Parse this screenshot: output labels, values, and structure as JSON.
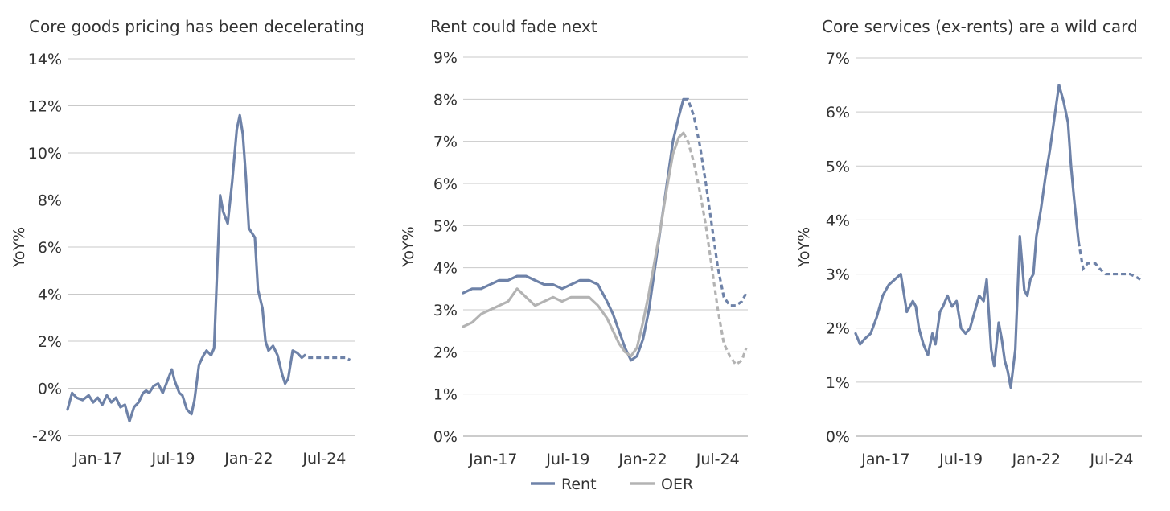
{
  "colors": {
    "rent": "#6e82a8",
    "oer": "#b3b3b3",
    "grid": "#c9c9c9",
    "text": "#333333"
  },
  "chart_data": [
    {
      "type": "line",
      "title": "Core goods pricing has been decelerating",
      "ylabel": "YoY%",
      "xlabel": "",
      "ylim": [
        -2,
        14
      ],
      "yticks": [
        -2,
        0,
        2,
        4,
        6,
        8,
        10,
        12,
        14
      ],
      "ytick_labels": [
        "-2%",
        "0%",
        "2%",
        "4%",
        "6%",
        "8%",
        "10%",
        "12%",
        "14%"
      ],
      "xlim": [
        2016.0,
        2025.5
      ],
      "xticks": [
        2017.0,
        2019.5,
        2022.0,
        2024.5
      ],
      "xtick_labels": [
        "Jan-17",
        "Jul-19",
        "Jan-22",
        "Jul-24"
      ],
      "series": [
        {
          "name": "Core goods",
          "color": "#6e82a8",
          "projected_from": 2023.7,
          "x": [
            2016.0,
            2016.15,
            2016.3,
            2016.5,
            2016.7,
            2016.85,
            2017.0,
            2017.15,
            2017.3,
            2017.45,
            2017.6,
            2017.75,
            2017.9,
            2018.05,
            2018.2,
            2018.35,
            2018.5,
            2018.6,
            2018.7,
            2018.85,
            2019.0,
            2019.15,
            2019.3,
            2019.45,
            2019.55,
            2019.7,
            2019.8,
            2019.95,
            2020.1,
            2020.2,
            2020.35,
            2020.5,
            2020.6,
            2020.75,
            2020.85,
            2020.95,
            2021.05,
            2021.15,
            2021.3,
            2021.45,
            2021.6,
            2021.7,
            2021.8,
            2021.9,
            2022.0,
            2022.1,
            2022.2,
            2022.3,
            2022.45,
            2022.55,
            2022.65,
            2022.8,
            2022.95,
            2023.1,
            2023.2,
            2023.3,
            2023.45,
            2023.6,
            2023.75,
            2023.85,
            2023.95,
            2024.05,
            2024.2,
            2024.3,
            2024.45,
            2024.6,
            2024.8,
            2025.0,
            2025.2,
            2025.35
          ],
          "y": [
            -0.9,
            -0.2,
            -0.4,
            -0.5,
            -0.3,
            -0.6,
            -0.4,
            -0.7,
            -0.3,
            -0.6,
            -0.4,
            -0.8,
            -0.7,
            -1.4,
            -0.8,
            -0.6,
            -0.2,
            -0.1,
            -0.2,
            0.1,
            0.2,
            -0.2,
            0.3,
            0.8,
            0.3,
            -0.2,
            -0.3,
            -0.9,
            -1.1,
            -0.5,
            1.0,
            1.4,
            1.6,
            1.4,
            1.7,
            5.0,
            8.2,
            7.5,
            7.0,
            8.8,
            11.0,
            11.6,
            10.8,
            9.0,
            6.8,
            6.6,
            6.4,
            4.2,
            3.4,
            2.0,
            1.6,
            1.8,
            1.4,
            0.6,
            0.2,
            0.4,
            1.6,
            1.5,
            1.3,
            1.4,
            1.3,
            1.3,
            1.3,
            1.3,
            1.3,
            1.3,
            1.3,
            1.3,
            1.3,
            1.2
          ]
        }
      ]
    },
    {
      "type": "line",
      "title": "Rent could fade next",
      "ylabel": "YoY%",
      "xlabel": "",
      "ylim": [
        0,
        9
      ],
      "yticks": [
        0,
        1,
        2,
        3,
        4,
        5,
        6,
        7,
        8,
        9
      ],
      "ytick_labels": [
        "0%",
        "1%",
        "2%",
        "3%",
        "4%",
        "5%",
        "6%",
        "7%",
        "8%",
        "9%"
      ],
      "xlim": [
        2016.0,
        2025.5
      ],
      "xticks": [
        2017.0,
        2019.5,
        2022.0,
        2024.5
      ],
      "xtick_labels": [
        "Jan-17",
        "Jul-19",
        "Jan-22",
        "Jul-24"
      ],
      "legend": {
        "position": "bottom",
        "entries": [
          "Rent",
          "OER"
        ]
      },
      "series": [
        {
          "name": "Rent",
          "color": "#6e82a8",
          "projected_from": 2023.3,
          "x": [
            2016.0,
            2016.3,
            2016.6,
            2016.9,
            2017.2,
            2017.5,
            2017.8,
            2018.1,
            2018.4,
            2018.7,
            2019.0,
            2019.3,
            2019.6,
            2019.9,
            2020.2,
            2020.5,
            2020.8,
            2021.0,
            2021.2,
            2021.4,
            2021.6,
            2021.8,
            2022.0,
            2022.2,
            2022.4,
            2022.6,
            2022.8,
            2023.0,
            2023.2,
            2023.35,
            2023.5,
            2023.7,
            2023.9,
            2024.1,
            2024.3,
            2024.5,
            2024.7,
            2024.9,
            2025.1,
            2025.3,
            2025.45
          ],
          "y": [
            3.4,
            3.5,
            3.5,
            3.6,
            3.7,
            3.7,
            3.8,
            3.8,
            3.7,
            3.6,
            3.6,
            3.5,
            3.6,
            3.7,
            3.7,
            3.6,
            3.2,
            2.9,
            2.5,
            2.1,
            1.8,
            1.9,
            2.3,
            3.0,
            4.0,
            5.0,
            6.0,
            7.0,
            7.6,
            8.0,
            8.0,
            7.6,
            6.9,
            6.0,
            5.0,
            4.0,
            3.3,
            3.1,
            3.1,
            3.2,
            3.4
          ]
        },
        {
          "name": "OER",
          "color": "#b3b3b3",
          "projected_from": 2023.3,
          "x": [
            2016.0,
            2016.3,
            2016.6,
            2016.9,
            2017.2,
            2017.5,
            2017.8,
            2018.1,
            2018.4,
            2018.7,
            2019.0,
            2019.3,
            2019.6,
            2019.9,
            2020.2,
            2020.5,
            2020.8,
            2021.0,
            2021.2,
            2021.4,
            2021.6,
            2021.8,
            2022.0,
            2022.2,
            2022.4,
            2022.6,
            2022.8,
            2023.0,
            2023.2,
            2023.35,
            2023.5,
            2023.7,
            2023.9,
            2024.1,
            2024.3,
            2024.5,
            2024.7,
            2024.9,
            2025.1,
            2025.3,
            2025.45
          ],
          "y": [
            2.6,
            2.7,
            2.9,
            3.0,
            3.1,
            3.2,
            3.5,
            3.3,
            3.1,
            3.2,
            3.3,
            3.2,
            3.3,
            3.3,
            3.3,
            3.1,
            2.8,
            2.5,
            2.2,
            2.0,
            1.9,
            2.1,
            2.7,
            3.4,
            4.2,
            5.0,
            5.9,
            6.7,
            7.1,
            7.2,
            7.0,
            6.5,
            5.8,
            5.0,
            4.0,
            3.0,
            2.2,
            1.9,
            1.7,
            1.8,
            2.1
          ]
        }
      ]
    },
    {
      "type": "line",
      "title": "Core services (ex-rents) are a wild card",
      "ylabel": "YoY%",
      "xlabel": "",
      "ylim": [
        0,
        7
      ],
      "yticks": [
        0,
        1,
        2,
        3,
        4,
        5,
        6,
        7
      ],
      "ytick_labels": [
        "0%",
        "1%",
        "2%",
        "3%",
        "4%",
        "5%",
        "6%",
        "7%"
      ],
      "xlim": [
        2016.0,
        2025.5
      ],
      "xticks": [
        2017.0,
        2019.5,
        2022.0,
        2024.5
      ],
      "xtick_labels": [
        "Jan-17",
        "Jul-19",
        "Jan-22",
        "Jul-24"
      ],
      "series": [
        {
          "name": "Core services ex-rents",
          "color": "#6e82a8",
          "projected_from": 2023.4,
          "x": [
            2016.0,
            2016.15,
            2016.3,
            2016.5,
            2016.7,
            2016.9,
            2017.1,
            2017.3,
            2017.5,
            2017.7,
            2017.9,
            2018.0,
            2018.1,
            2018.25,
            2018.4,
            2018.55,
            2018.65,
            2018.8,
            2018.9,
            2019.05,
            2019.2,
            2019.35,
            2019.5,
            2019.65,
            2019.8,
            2019.95,
            2020.1,
            2020.25,
            2020.35,
            2020.5,
            2020.6,
            2020.75,
            2020.85,
            2020.95,
            2021.05,
            2021.15,
            2021.3,
            2021.45,
            2021.6,
            2021.7,
            2021.8,
            2021.9,
            2022.0,
            2022.15,
            2022.3,
            2022.45,
            2022.6,
            2022.75,
            2022.9,
            2023.05,
            2023.15,
            2023.25,
            2023.4,
            2023.55,
            2023.7,
            2023.85,
            2023.95,
            2024.1,
            2024.3,
            2024.5,
            2024.7,
            2024.9,
            2025.1,
            2025.3,
            2025.45
          ],
          "y": [
            1.9,
            1.7,
            1.8,
            1.9,
            2.2,
            2.6,
            2.8,
            2.9,
            3.0,
            2.3,
            2.5,
            2.4,
            2.0,
            1.7,
            1.5,
            1.9,
            1.7,
            2.3,
            2.4,
            2.6,
            2.4,
            2.5,
            2.0,
            1.9,
            2.0,
            2.3,
            2.6,
            2.5,
            2.9,
            1.6,
            1.3,
            2.1,
            1.8,
            1.4,
            1.2,
            0.9,
            1.6,
            3.7,
            2.7,
            2.6,
            2.9,
            3.0,
            3.7,
            4.2,
            4.8,
            5.3,
            5.9,
            6.5,
            6.2,
            5.8,
            5.0,
            4.4,
            3.6,
            3.1,
            3.2,
            3.2,
            3.2,
            3.1,
            3.0,
            3.0,
            3.0,
            3.0,
            3.0,
            2.95,
            2.9
          ]
        }
      ]
    }
  ]
}
